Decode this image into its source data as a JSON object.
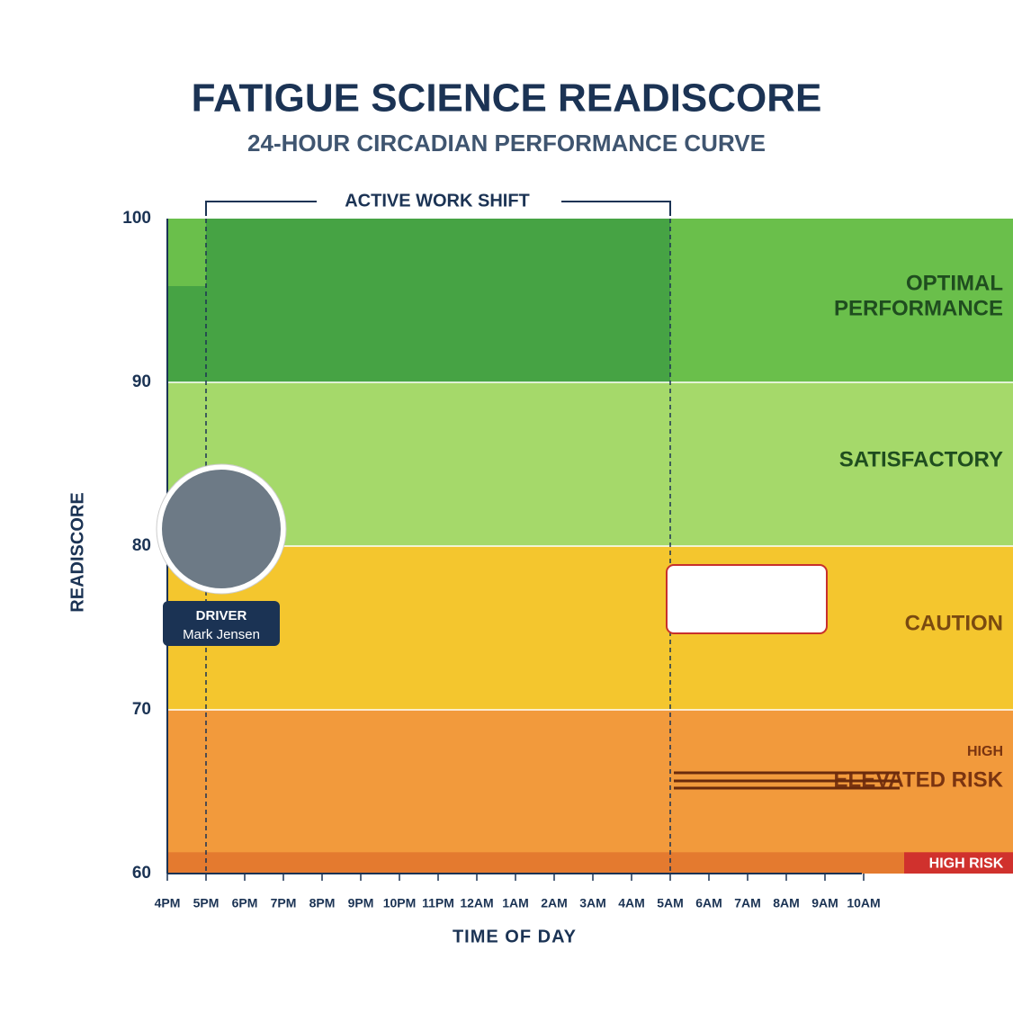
{
  "chart_data": {
    "type": "band",
    "title": "FATIGUE SCIENCE READISCORE",
    "subtitle": "24-HOUR CIRCADIAN PERFORMANCE CURVE",
    "y_label": "READISCORE",
    "x_label": "TIME OF DAY",
    "shift_label": "ACTIVE WORK SHIFT",
    "categories": [
      "4PM",
      "5PM",
      "6PM",
      "7PM",
      "8PM",
      "9PM",
      "10PM",
      "11PM",
      "12AM",
      "1AM",
      "2AM",
      "3AM",
      "4AM",
      "5AM",
      "6AM",
      "7AM",
      "8AM",
      "9AM",
      "10AM"
    ],
    "ylim": [
      60,
      100
    ],
    "yticks": [
      60,
      70,
      80,
      90,
      100
    ],
    "bands": [
      {
        "lines": [
          "OPTIMAL",
          "PERFORMANCE"
        ],
        "from": 90,
        "to": 100,
        "color": "#6abf4b"
      },
      {
        "lines": [
          "SATISFACTORY"
        ],
        "from": 80,
        "to": 90,
        "color": "#a5d96a"
      },
      {
        "lines": [
          "CAUTION"
        ],
        "from": 70,
        "to": 80,
        "color": "#f4c62e"
      },
      {
        "lines": [
          "HIGH",
          "ELEVATED RISK"
        ],
        "from": 60,
        "to": 70,
        "color": "#f29a3c"
      },
      {
        "lines": [
          "HIGH RISK"
        ],
        "from": 60,
        "to": 61.3,
        "color": "#e47a2f"
      }
    ],
    "driver": {
      "role": "DRIVER",
      "name": "Mark Jensen"
    }
  }
}
